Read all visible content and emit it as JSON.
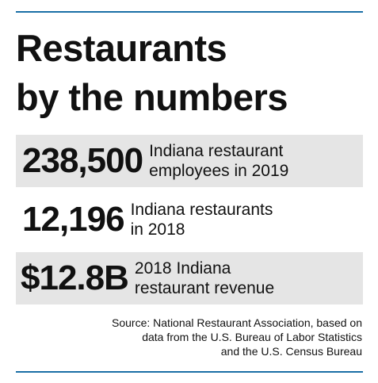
{
  "title": {
    "line1": "Restaurants",
    "line2": "by the numbers"
  },
  "stats": [
    {
      "value": "238,500",
      "label_line1": "Indiana restaurant",
      "label_line2": "employees in 2019",
      "shaded": true
    },
    {
      "value": "12,196",
      "label_line1": "Indiana restaurants",
      "label_line2": "in 2018",
      "shaded": false
    },
    {
      "value": "$12.8B",
      "label_line1": "2018 Indiana",
      "label_line2": "restaurant revenue",
      "shaded": true
    }
  ],
  "source": {
    "line1": "Source: National Restaurant Association, based on",
    "line2": "data from the U.S. Bureau of Labor Statistics",
    "line3": "and the U.S. Census Bureau"
  },
  "colors": {
    "rule": "#1a6fa6",
    "shade": "#e5e5e5",
    "text": "#111111"
  }
}
